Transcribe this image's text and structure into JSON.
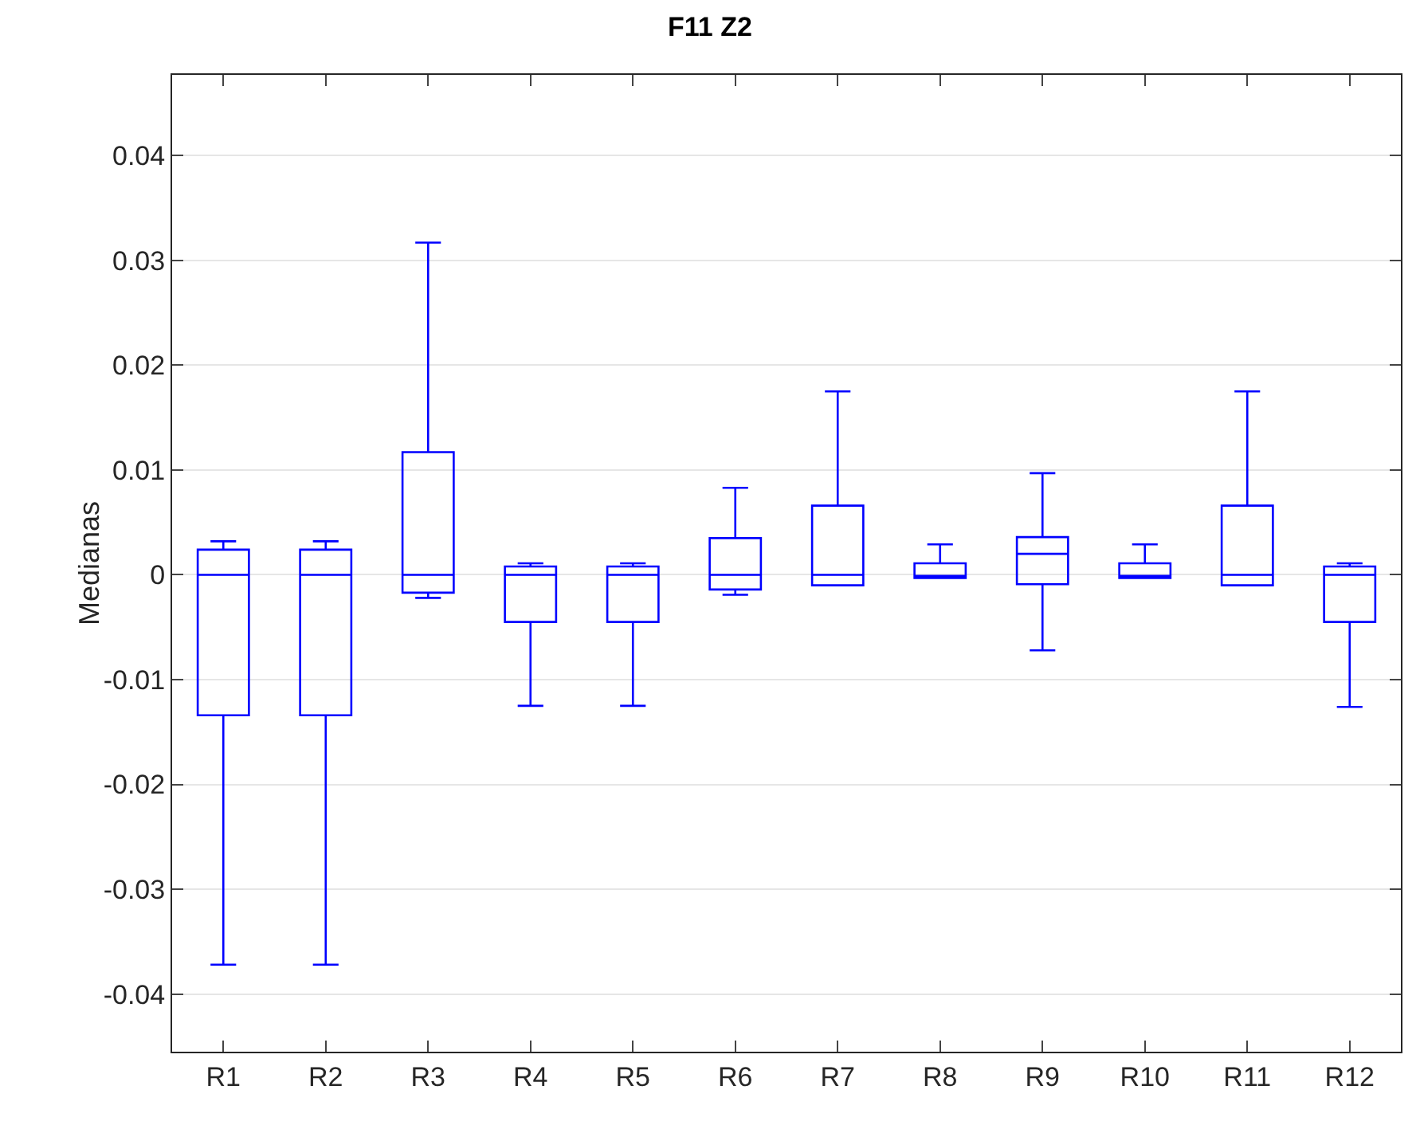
{
  "chart_data": {
    "type": "box",
    "title": "F11 Z2",
    "ylabel": "Medianas",
    "categories": [
      "R1",
      "R2",
      "R3",
      "R4",
      "R5",
      "R6",
      "R7",
      "R8",
      "R9",
      "R10",
      "R11",
      "R12"
    ],
    "series": [
      {
        "color": "#0000ff",
        "boxes": [
          {
            "low": -0.0372,
            "q1": -0.0134,
            "median": 0,
            "q3": 0.0024,
            "high": 0.0032
          },
          {
            "low": -0.0372,
            "q1": -0.0134,
            "median": 0,
            "q3": 0.0024,
            "high": 0.0032
          },
          {
            "low": -0.0022,
            "q1": -0.0017,
            "median": 0,
            "q3": 0.0117,
            "high": 0.0317
          },
          {
            "low": -0.0125,
            "q1": -0.0045,
            "median": 0,
            "q3": 0.0008,
            "high": 0.0011
          },
          {
            "low": -0.0125,
            "q1": -0.0045,
            "median": 0,
            "q3": 0.0008,
            "high": 0.0011
          },
          {
            "low": -0.0019,
            "q1": -0.0014,
            "median": 0,
            "q3": 0.0035,
            "high": 0.0083
          },
          {
            "low": -0.001,
            "q1": -0.001,
            "median": 0,
            "q3": 0.0066,
            "high": 0.0175
          },
          {
            "low": -0.0003,
            "q1": -0.0003,
            "median": -0.0001,
            "q3": 0.0011,
            "high": 0.0029
          },
          {
            "low": -0.0072,
            "q1": -0.0009,
            "median": 0.002,
            "q3": 0.0036,
            "high": 0.0097
          },
          {
            "low": -0.0003,
            "q1": -0.0003,
            "median": -0.0001,
            "q3": 0.0011,
            "high": 0.0029
          },
          {
            "low": -0.001,
            "q1": -0.001,
            "median": 0,
            "q3": 0.0066,
            "high": 0.0175
          },
          {
            "low": -0.0126,
            "q1": -0.0045,
            "median": 0,
            "q3": 0.0008,
            "high": 0.0011
          }
        ]
      }
    ],
    "ylim": [
      -0.0455,
      0.0477
    ],
    "yticks": [
      -0.04,
      -0.03,
      -0.02,
      -0.01,
      0,
      0.01,
      0.02,
      0.03,
      0.04
    ],
    "grid": "y"
  }
}
